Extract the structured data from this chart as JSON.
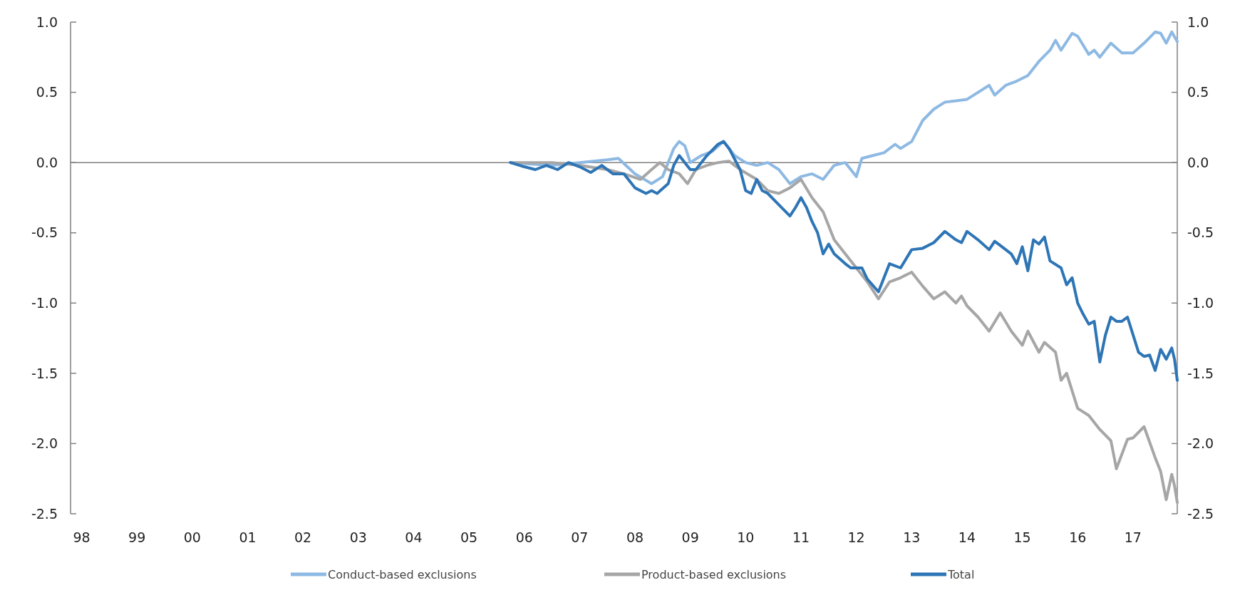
{
  "chart_data": {
    "type": "line",
    "xlim": [
      1997.8,
      2017.8
    ],
    "xticks": [
      {
        "value": 1998,
        "label": "98"
      },
      {
        "value": 1999,
        "label": "99"
      },
      {
        "value": 2000,
        "label": "00"
      },
      {
        "value": 2001,
        "label": "01"
      },
      {
        "value": 2002,
        "label": "02"
      },
      {
        "value": 2003,
        "label": "03"
      },
      {
        "value": 2004,
        "label": "04"
      },
      {
        "value": 2005,
        "label": "05"
      },
      {
        "value": 2006,
        "label": "06"
      },
      {
        "value": 2007,
        "label": "07"
      },
      {
        "value": 2008,
        "label": "08"
      },
      {
        "value": 2009,
        "label": "09"
      },
      {
        "value": 2010,
        "label": "10"
      },
      {
        "value": 2011,
        "label": "11"
      },
      {
        "value": 2012,
        "label": "12"
      },
      {
        "value": 2013,
        "label": "13"
      },
      {
        "value": 2014,
        "label": "14"
      },
      {
        "value": 2015,
        "label": "15"
      },
      {
        "value": 2016,
        "label": "16"
      },
      {
        "value": 2017,
        "label": "17"
      }
    ],
    "ylim": [
      -2.5,
      1.0
    ],
    "yticks": [
      {
        "value": 1,
        "label": "1.0"
      },
      {
        "value": 0.5,
        "label": "0.5"
      },
      {
        "value": 0,
        "label": "0.0"
      },
      {
        "value": -0.5,
        "label": "-0.5"
      },
      {
        "value": -1,
        "label": "-1.0"
      },
      {
        "value": -1.5,
        "label": "-1.5"
      },
      {
        "value": -2,
        "label": "-2.0"
      },
      {
        "value": -2.5,
        "label": "-2.5"
      }
    ],
    "y2lim": [
      -2.5,
      1.0
    ],
    "y2ticks": [
      {
        "value": 1,
        "label": "1.0"
      },
      {
        "value": 0.5,
        "label": "0.5"
      },
      {
        "value": 0,
        "label": "0.0"
      },
      {
        "value": -0.5,
        "label": "-0.5"
      },
      {
        "value": -1,
        "label": "-1.0"
      },
      {
        "value": -1.5,
        "label": "-1.5"
      },
      {
        "value": -2,
        "label": "-2.0"
      },
      {
        "value": -2.5,
        "label": "-2.5"
      }
    ],
    "grid": false,
    "legend": "bottom",
    "line_style": "solid",
    "marker": "none",
    "ref_lines": [
      {
        "axis": "y",
        "value": 0,
        "color": "#808080"
      }
    ],
    "series": [
      {
        "name": "Conduct-based exclusions",
        "color": "#8db9e3",
        "x": [
          2005.75,
          2006.5,
          2007,
          2007.5,
          2007.7,
          2008,
          2008.3,
          2008.5,
          2008.7,
          2008.8,
          2008.9,
          2009,
          2009.2,
          2009.4,
          2009.6,
          2009.8,
          2010,
          2010.2,
          2010.4,
          2010.6,
          2010.8,
          2011,
          2011.2,
          2011.4,
          2011.6,
          2011.8,
          2012,
          2012.1,
          2012.3,
          2012.5,
          2012.7,
          2012.8,
          2013,
          2013.2,
          2013.4,
          2013.6,
          2013.8,
          2014,
          2014.2,
          2014.4,
          2014.5,
          2014.7,
          2014.9,
          2015.1,
          2015.3,
          2015.5,
          2015.6,
          2015.7,
          2015.9,
          2016,
          2016.2,
          2016.3,
          2016.4,
          2016.6,
          2016.8,
          2017,
          2017.2,
          2017.4,
          2017.5,
          2017.6,
          2017.7,
          2017.8
        ],
        "values": [
          0,
          -0.02,
          0,
          0.02,
          0.03,
          -0.08,
          -0.15,
          -0.1,
          0.1,
          0.15,
          0.12,
          0,
          0.05,
          0.08,
          0.15,
          0.05,
          0,
          -0.02,
          0,
          -0.05,
          -0.15,
          -0.1,
          -0.08,
          -0.12,
          -0.02,
          0,
          -0.1,
          0.03,
          0.05,
          0.07,
          0.13,
          0.1,
          0.15,
          0.3,
          0.38,
          0.43,
          0.44,
          0.45,
          0.5,
          0.55,
          0.48,
          0.55,
          0.58,
          0.62,
          0.72,
          0.8,
          0.87,
          0.8,
          0.92,
          0.9,
          0.77,
          0.8,
          0.75,
          0.85,
          0.78,
          0.78,
          0.85,
          0.93,
          0.92,
          0.85,
          0.93,
          0.86
        ]
      },
      {
        "name": "Product-based exclusions",
        "color": "#a6a6a6",
        "x": [
          2005.75,
          2006.5,
          2007,
          2007.5,
          2007.8,
          2008.1,
          2008.3,
          2008.45,
          2008.6,
          2008.8,
          2008.95,
          2009.1,
          2009.3,
          2009.5,
          2009.7,
          2009.9,
          2010.2,
          2010.4,
          2010.6,
          2010.8,
          2011,
          2011.2,
          2011.4,
          2011.6,
          2011.8,
          2012,
          2012.2,
          2012.4,
          2012.6,
          2012.8,
          2013,
          2013.2,
          2013.4,
          2013.6,
          2013.8,
          2013.9,
          2014,
          2014.2,
          2014.4,
          2014.6,
          2014.8,
          2015,
          2015.1,
          2015.3,
          2015.4,
          2015.6,
          2015.7,
          2015.8,
          2016,
          2016.2,
          2016.4,
          2016.6,
          2016.7,
          2016.9,
          2017,
          2017.2,
          2017.4,
          2017.5,
          2017.6,
          2017.7,
          2017.75,
          2017.8
        ],
        "values": [
          0,
          0,
          -0.02,
          -0.05,
          -0.08,
          -0.12,
          -0.05,
          0,
          -0.05,
          -0.08,
          -0.15,
          -0.05,
          -0.02,
          0,
          0.01,
          -0.05,
          -0.12,
          -0.2,
          -0.22,
          -0.18,
          -0.12,
          -0.25,
          -0.35,
          -0.55,
          -0.65,
          -0.75,
          -0.85,
          -0.97,
          -0.85,
          -0.82,
          -0.78,
          -0.88,
          -0.97,
          -0.92,
          -1,
          -0.95,
          -1.02,
          -1.1,
          -1.2,
          -1.07,
          -1.2,
          -1.3,
          -1.2,
          -1.35,
          -1.28,
          -1.35,
          -1.55,
          -1.5,
          -1.75,
          -1.8,
          -1.9,
          -1.98,
          -2.18,
          -1.97,
          -1.96,
          -1.88,
          -2.1,
          -2.2,
          -2.4,
          -2.22,
          -2.3,
          -2.42
        ]
      },
      {
        "name": "Total",
        "color": "#2e75b6",
        "x": [
          2005.75,
          2006,
          2006.2,
          2006.4,
          2006.6,
          2006.8,
          2007,
          2007.2,
          2007.4,
          2007.6,
          2007.8,
          2008,
          2008.2,
          2008.3,
          2008.4,
          2008.6,
          2008.7,
          2008.8,
          2008.9,
          2009,
          2009.1,
          2009.3,
          2009.5,
          2009.6,
          2009.7,
          2009.9,
          2010,
          2010.1,
          2010.2,
          2010.3,
          2010.4,
          2010.6,
          2010.8,
          2010.9,
          2011,
          2011.1,
          2011.2,
          2011.3,
          2011.4,
          2011.5,
          2011.6,
          2011.8,
          2011.9,
          2012.1,
          2012.2,
          2012.4,
          2012.5,
          2012.6,
          2012.8,
          2013,
          2013.2,
          2013.4,
          2013.6,
          2013.8,
          2013.9,
          2014,
          2014.2,
          2014.4,
          2014.5,
          2014.6,
          2014.8,
          2014.9,
          2015,
          2015.1,
          2015.2,
          2015.3,
          2015.4,
          2015.5,
          2015.7,
          2015.8,
          2015.9,
          2016,
          2016.1,
          2016.2,
          2016.3,
          2016.4,
          2016.5,
          2016.6,
          2016.7,
          2016.8,
          2016.9,
          2017.1,
          2017.2,
          2017.3,
          2017.4,
          2017.5,
          2017.6,
          2017.7,
          2017.75,
          2017.8
        ],
        "values": [
          0,
          -0.03,
          -0.05,
          -0.02,
          -0.05,
          0,
          -0.03,
          -0.07,
          -0.02,
          -0.08,
          -0.08,
          -0.18,
          -0.22,
          -0.2,
          -0.22,
          -0.15,
          -0.02,
          0.05,
          0,
          -0.05,
          -0.05,
          0.05,
          0.13,
          0.15,
          0.1,
          -0.05,
          -0.2,
          -0.22,
          -0.12,
          -0.2,
          -0.22,
          -0.3,
          -0.38,
          -0.32,
          -0.25,
          -0.32,
          -0.42,
          -0.5,
          -0.65,
          -0.58,
          -0.65,
          -0.72,
          -0.75,
          -0.75,
          -0.83,
          -0.92,
          -0.82,
          -0.72,
          -0.75,
          -0.62,
          -0.61,
          -0.57,
          -0.49,
          -0.55,
          -0.57,
          -0.49,
          -0.55,
          -0.62,
          -0.56,
          -0.59,
          -0.65,
          -0.72,
          -0.6,
          -0.77,
          -0.55,
          -0.58,
          -0.53,
          -0.7,
          -0.75,
          -0.87,
          -0.82,
          -1,
          -1.08,
          -1.15,
          -1.13,
          -1.42,
          -1.23,
          -1.1,
          -1.13,
          -1.13,
          -1.1,
          -1.35,
          -1.38,
          -1.37,
          -1.48,
          -1.33,
          -1.4,
          -1.32,
          -1.4,
          -1.55
        ]
      }
    ]
  }
}
